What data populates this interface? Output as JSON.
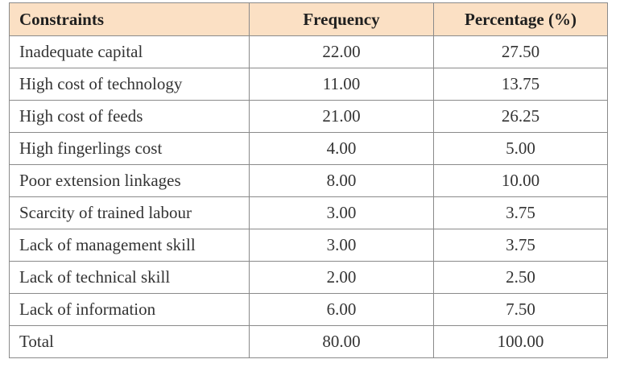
{
  "table": {
    "headers": [
      "Constraints",
      "Frequency",
      "Percentage (%)"
    ],
    "rows": [
      [
        "Inadequate capital",
        "22.00",
        "27.50"
      ],
      [
        "High cost of technology",
        "11.00",
        "13.75"
      ],
      [
        "High cost of feeds",
        "21.00",
        "26.25"
      ],
      [
        "High fingerlings cost",
        "4.00",
        "5.00"
      ],
      [
        "Poor extension linkages",
        "8.00",
        "10.00"
      ],
      [
        "Scarcity of trained labour",
        "3.00",
        "3.75"
      ],
      [
        "Lack of management skill",
        "3.00",
        "3.75"
      ],
      [
        "Lack of technical skill",
        "2.00",
        "2.50"
      ],
      [
        "Lack of information",
        "6.00",
        "7.50"
      ],
      [
        "Total",
        "80.00",
        "100.00"
      ]
    ]
  },
  "colors": {
    "header_background": "#fbe0c4",
    "border": "#8a8a8a",
    "text": "#333333"
  }
}
